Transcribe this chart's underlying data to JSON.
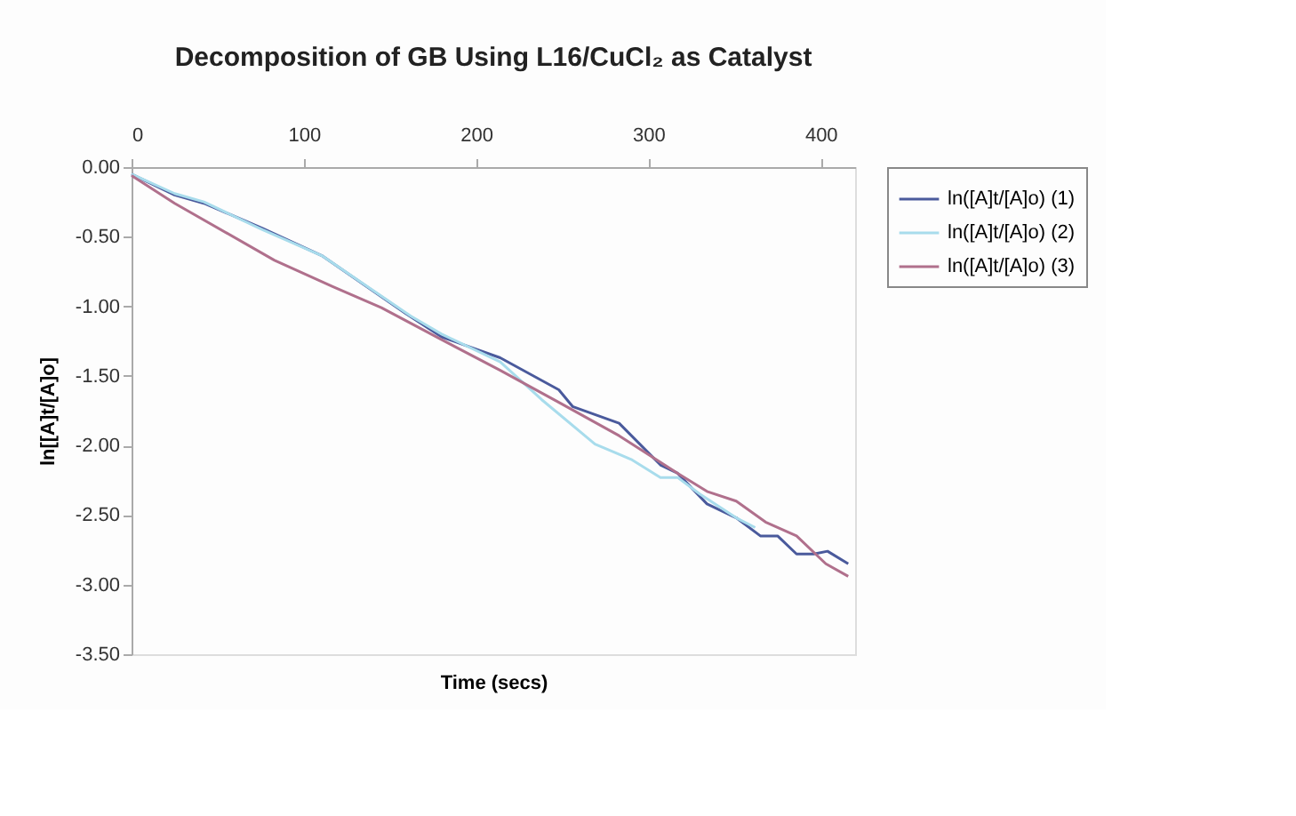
{
  "chart_data": {
    "type": "line",
    "title": "Decomposition of GB Using L16/CuCl₂ as Catalyst",
    "xlabel": "Time (secs)",
    "ylabel": "ln[[A]t/[A]o]",
    "xlim": [
      0,
      420
    ],
    "xticks": [
      0,
      100,
      200,
      300,
      400
    ],
    "ylim": [
      -3.5,
      0
    ],
    "yticks": [
      {
        "value": 0,
        "label": "0.00"
      },
      {
        "value": -0.5,
        "label": "-0.50"
      },
      {
        "value": -1,
        "label": "-1.00"
      },
      {
        "value": -1.5,
        "label": "-1.50"
      },
      {
        "value": -2,
        "label": "-2.00"
      },
      {
        "value": -2.5,
        "label": "-2.50"
      },
      {
        "value": -3,
        "label": "-3.00"
      },
      {
        "value": -3.5,
        "label": "-3.50"
      }
    ],
    "grid": false,
    "legend": "right",
    "marker": "none",
    "line_style": "solid",
    "series": [
      {
        "name": "ln([A]t/[A]o) (1)",
        "color": "#4a5a9c",
        "x": [
          0,
          25,
          42,
          76,
          111,
          159,
          180,
          214,
          248,
          256,
          283,
          307,
          317,
          334,
          351,
          365,
          375,
          386,
          396,
          404,
          416
        ],
        "values": [
          -0.05,
          -0.2,
          -0.26,
          -0.44,
          -0.64,
          -1.05,
          -1.22,
          -1.37,
          -1.6,
          -1.72,
          -1.84,
          -2.14,
          -2.2,
          -2.42,
          -2.52,
          -2.65,
          -2.65,
          -2.78,
          -2.78,
          -2.76,
          -2.85
        ]
      },
      {
        "name": "ln([A]t/[A]o) (2)",
        "color": "#a8dcec",
        "x": [
          0,
          25,
          42,
          76,
          111,
          162,
          180,
          214,
          238,
          269,
          290,
          307,
          317,
          330,
          351,
          362
        ],
        "values": [
          -0.05,
          -0.19,
          -0.25,
          -0.45,
          -0.64,
          -1.07,
          -1.2,
          -1.4,
          -1.67,
          -1.99,
          -2.1,
          -2.23,
          -2.23,
          -2.35,
          -2.52,
          -2.59
        ]
      },
      {
        "name": "ln([A]t/[A]o) (3)",
        "color": "#b0708c",
        "x": [
          0,
          25,
          83,
          117,
          145,
          180,
          214,
          248,
          283,
          317,
          334,
          351,
          368,
          386,
          403,
          416
        ],
        "values": [
          -0.06,
          -0.26,
          -0.67,
          -0.86,
          -1.01,
          -1.24,
          -1.46,
          -1.69,
          -1.93,
          -2.2,
          -2.33,
          -2.4,
          -2.55,
          -2.65,
          -2.85,
          -2.94
        ]
      }
    ]
  }
}
